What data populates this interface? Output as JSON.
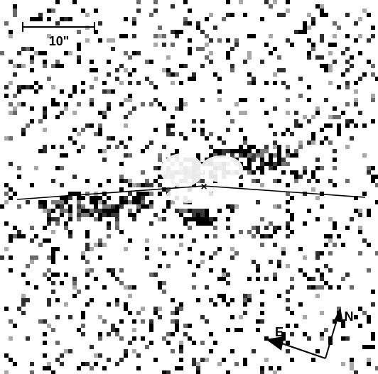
{
  "image": {
    "kind": "astronomical greyscale residual map",
    "colors": {
      "background": "#ffffff",
      "foreground": "#000000"
    }
  },
  "scale_bar": {
    "label": "10\""
  },
  "compass": {
    "north_label": "N",
    "east_label": "E"
  },
  "center_marker": {
    "symbol": "×"
  }
}
